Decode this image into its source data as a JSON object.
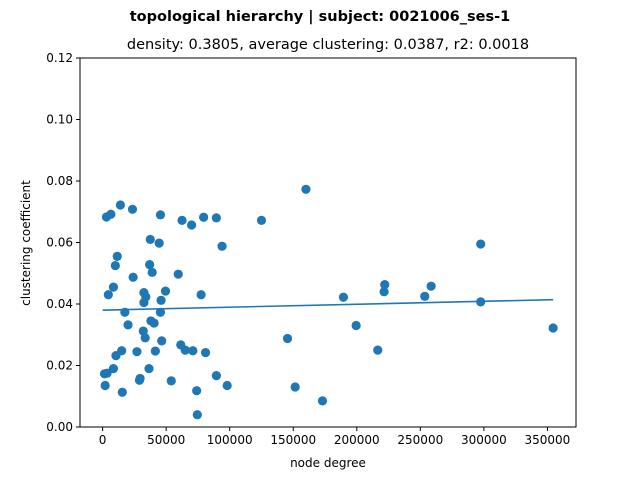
{
  "chart_data": {
    "type": "scatter",
    "suptitle": "topological hierarchy | subject: 0021006_ses-1",
    "title": "density: 0.3805,  average clustering: 0.0387,  r2: 0.0018",
    "xlabel": "node degree",
    "ylabel": "clustering coefficient",
    "xlim": [
      -17800,
      372500
    ],
    "ylim": [
      0,
      0.12
    ],
    "xticks": [
      0,
      50000,
      100000,
      150000,
      200000,
      250000,
      300000,
      350000
    ],
    "xtick_labels": [
      "0",
      "50000",
      "100000",
      "150000",
      "200000",
      "250000",
      "300000",
      "350000"
    ],
    "yticks": [
      0.0,
      0.02,
      0.04,
      0.06,
      0.08,
      0.1,
      0.12
    ],
    "ytick_labels": [
      "0.00",
      "0.02",
      "0.04",
      "0.06",
      "0.08",
      "0.10",
      "0.12"
    ],
    "marker_color": "#1f77b4",
    "line_color": "#1f77b4",
    "grid": false,
    "legend": "none",
    "points": [
      {
        "x": 2000,
        "y": 0.0135
      },
      {
        "x": 1500,
        "y": 0.0173
      },
      {
        "x": 3500,
        "y": 0.0175
      },
      {
        "x": 3000,
        "y": 0.0683
      },
      {
        "x": 6500,
        "y": 0.0692
      },
      {
        "x": 14000,
        "y": 0.0722
      },
      {
        "x": 23500,
        "y": 0.0708
      },
      {
        "x": 4500,
        "y": 0.043
      },
      {
        "x": 8500,
        "y": 0.0455
      },
      {
        "x": 10000,
        "y": 0.0525
      },
      {
        "x": 11500,
        "y": 0.0555
      },
      {
        "x": 8500,
        "y": 0.019
      },
      {
        "x": 10500,
        "y": 0.0232
      },
      {
        "x": 15000,
        "y": 0.0248
      },
      {
        "x": 15500,
        "y": 0.0113
      },
      {
        "x": 17500,
        "y": 0.0373
      },
      {
        "x": 20000,
        "y": 0.0332
      },
      {
        "x": 24000,
        "y": 0.0487
      },
      {
        "x": 27000,
        "y": 0.0245
      },
      {
        "x": 29000,
        "y": 0.0152
      },
      {
        "x": 29500,
        "y": 0.0158
      },
      {
        "x": 32000,
        "y": 0.0312
      },
      {
        "x": 32500,
        "y": 0.0405
      },
      {
        "x": 32500,
        "y": 0.0437
      },
      {
        "x": 33500,
        "y": 0.029
      },
      {
        "x": 34000,
        "y": 0.0423
      },
      {
        "x": 36500,
        "y": 0.019
      },
      {
        "x": 37000,
        "y": 0.0528
      },
      {
        "x": 37500,
        "y": 0.061
      },
      {
        "x": 38000,
        "y": 0.0345
      },
      {
        "x": 39000,
        "y": 0.0503
      },
      {
        "x": 40500,
        "y": 0.0338
      },
      {
        "x": 41500,
        "y": 0.0247
      },
      {
        "x": 44500,
        "y": 0.0598
      },
      {
        "x": 45500,
        "y": 0.069
      },
      {
        "x": 45500,
        "y": 0.0373
      },
      {
        "x": 46000,
        "y": 0.0412
      },
      {
        "x": 46500,
        "y": 0.028
      },
      {
        "x": 49500,
        "y": 0.0442
      },
      {
        "x": 54000,
        "y": 0.015
      },
      {
        "x": 59500,
        "y": 0.0497
      },
      {
        "x": 61500,
        "y": 0.0267
      },
      {
        "x": 62500,
        "y": 0.0672
      },
      {
        "x": 65000,
        "y": 0.025
      },
      {
        "x": 70000,
        "y": 0.0657
      },
      {
        "x": 71000,
        "y": 0.0248
      },
      {
        "x": 74000,
        "y": 0.0118
      },
      {
        "x": 74500,
        "y": 0.004
      },
      {
        "x": 77500,
        "y": 0.043
      },
      {
        "x": 79500,
        "y": 0.0682
      },
      {
        "x": 81000,
        "y": 0.0242
      },
      {
        "x": 89500,
        "y": 0.068
      },
      {
        "x": 89500,
        "y": 0.0167
      },
      {
        "x": 94000,
        "y": 0.0588
      },
      {
        "x": 98000,
        "y": 0.0135
      },
      {
        "x": 125000,
        "y": 0.0672
      },
      {
        "x": 145500,
        "y": 0.0288
      },
      {
        "x": 151500,
        "y": 0.013
      },
      {
        "x": 160000,
        "y": 0.0773
      },
      {
        "x": 173000,
        "y": 0.0085
      },
      {
        "x": 189500,
        "y": 0.0422
      },
      {
        "x": 199500,
        "y": 0.033
      },
      {
        "x": 216500,
        "y": 0.025
      },
      {
        "x": 221500,
        "y": 0.044
      },
      {
        "x": 222000,
        "y": 0.0463
      },
      {
        "x": 253500,
        "y": 0.0425
      },
      {
        "x": 258500,
        "y": 0.0458
      },
      {
        "x": 297500,
        "y": 0.0595
      },
      {
        "x": 297500,
        "y": 0.0407
      },
      {
        "x": 354500,
        "y": 0.0322
      }
    ],
    "fit_line": {
      "x": [
        0,
        354500
      ],
      "y": [
        0.038,
        0.0414
      ]
    }
  }
}
